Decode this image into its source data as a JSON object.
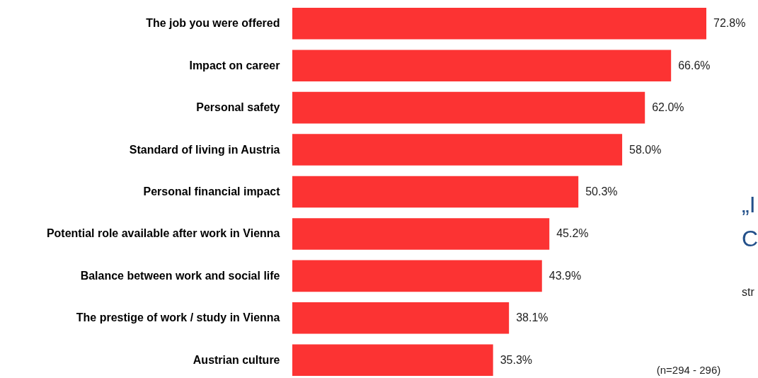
{
  "chart_data": {
    "type": "bar",
    "orientation": "horizontal",
    "color": "#fc3333",
    "categories": [
      "The job you were offered",
      "Impact on career",
      "Personal safety",
      "Standard of living in Austria",
      "Personal financial impact",
      "Potential role available after work in Vienna",
      "Balance between work and social life",
      "The prestige of work / study in Vienna",
      "Austrian culture"
    ],
    "values": [
      72.8,
      66.6,
      62.0,
      58.0,
      50.3,
      45.2,
      43.9,
      38.1,
      35.3
    ],
    "value_labels": [
      "72.8%",
      "66.6%",
      "62.0%",
      "58.0%",
      "50.3%",
      "45.2%",
      "43.9%",
      "38.1%",
      "35.3%"
    ],
    "tick_labels": "y",
    "annotations": [
      "(n=294 - 296)",
      "„I",
      "C",
      "str"
    ]
  }
}
